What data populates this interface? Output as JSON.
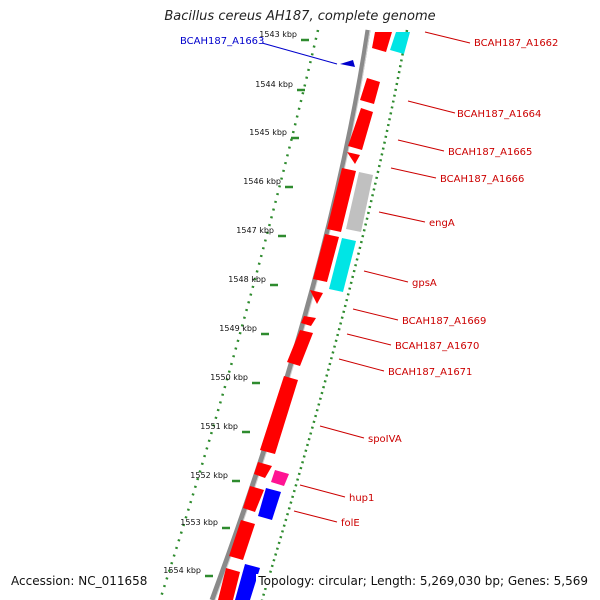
{
  "title": "Bacillus cereus AH187, complete genome",
  "footer": {
    "accession": "Accession: NC_011658",
    "summary": "Topology: circular; Length: 5,269,030 bp; Genes: 5,569"
  },
  "colors": {
    "backbone": "#8a8a8a",
    "tick": "#2e8b2e",
    "forward_gene": "#ff0000",
    "reverse_gene_label": "#0000cc",
    "label_line_red": "#cc0000",
    "cyan_feature": "#00e5e5",
    "grey_feature": "#c0c0c0",
    "magenta_feature": "#ff1493",
    "blue_feature": "#0000ff"
  },
  "ticks": [
    {
      "label": "1543 kbp"
    },
    {
      "label": "1544 kbp"
    },
    {
      "label": "1545 kbp"
    },
    {
      "label": "1546 kbp"
    },
    {
      "label": "1547 kbp"
    },
    {
      "label": "1548 kbp"
    },
    {
      "label": "1549 kbp"
    },
    {
      "label": "1550 kbp"
    },
    {
      "label": "1551 kbp"
    },
    {
      "label": "1552 kbp"
    },
    {
      "label": "1553 kbp"
    },
    {
      "label": "1554 kbp"
    }
  ],
  "gene_labels": [
    {
      "name": "BCAH187_A1663",
      "strand": "reverse"
    },
    {
      "name": "BCAH187_A1662",
      "strand": "forward"
    },
    {
      "name": "BCAH187_A1664",
      "strand": "forward"
    },
    {
      "name": "BCAH187_A1665",
      "strand": "forward"
    },
    {
      "name": "BCAH187_A1666",
      "strand": "forward"
    },
    {
      "name": "engA",
      "strand": "forward"
    },
    {
      "name": "gpsA",
      "strand": "forward"
    },
    {
      "name": "BCAH187_A1669",
      "strand": "forward"
    },
    {
      "name": "BCAH187_A1670",
      "strand": "forward"
    },
    {
      "name": "BCAH187_A1671",
      "strand": "forward"
    },
    {
      "name": "spoIVA",
      "strand": "forward"
    },
    {
      "name": "hup1",
      "strand": "forward"
    },
    {
      "name": "folE",
      "strand": "forward"
    }
  ]
}
